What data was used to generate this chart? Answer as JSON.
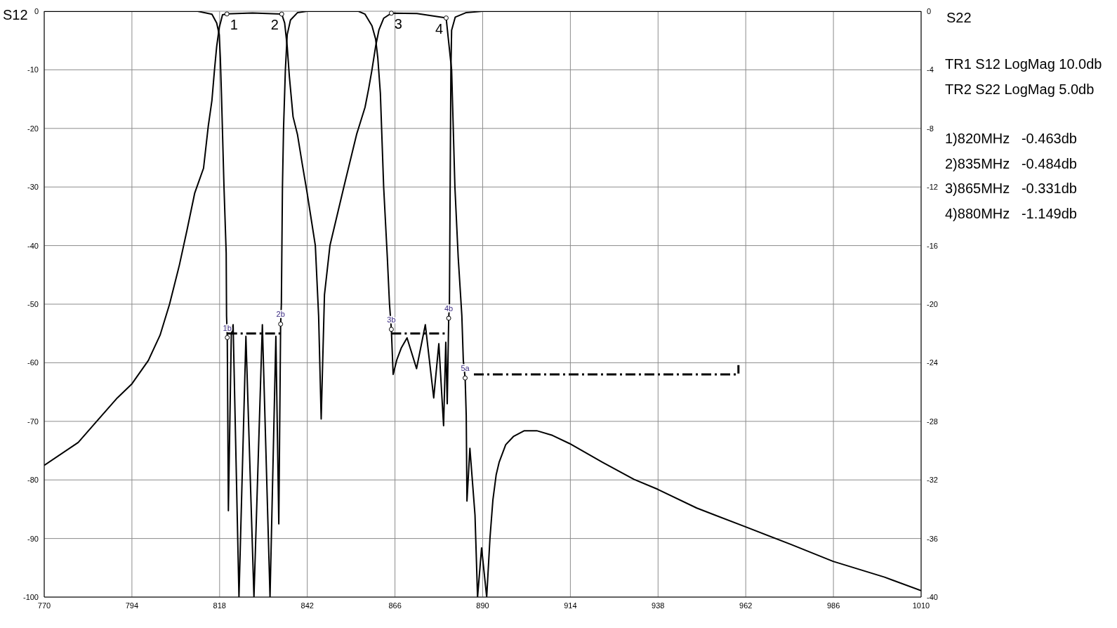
{
  "chart_data": {
    "type": "line",
    "ylabel": "S12",
    "y2label": "S22",
    "xlim": [
      770,
      1010
    ],
    "xticks": [
      770,
      794,
      818,
      842,
      866,
      890,
      914,
      938,
      962,
      986,
      1010
    ],
    "ylim": [
      -100,
      0
    ],
    "yticks": [
      -100,
      -90,
      -80,
      -70,
      -60,
      -50,
      -40,
      -30,
      -20,
      -10,
      0
    ],
    "y2lim": [
      -40,
      0
    ],
    "y2ticks": [
      -40,
      -36,
      -32,
      -28,
      -24,
      -20,
      -16,
      -12,
      -8,
      -4,
      0
    ],
    "grid": true,
    "line_style": "solid",
    "series": [
      {
        "color": "#000000",
        "x": [
          770,
          779.3,
          783.5,
          790,
          794,
          798.5,
          801.7,
          804.3,
          807,
          809.1,
          811.2,
          813.6,
          814.9,
          815.9,
          816.6,
          817.2,
          817.9,
          818.8,
          820,
          827,
          835,
          835.8,
          836.5,
          837.1,
          838.1,
          839.3,
          840.6,
          841.9,
          843.2,
          844.2,
          845.1,
          845.8,
          846.7,
          848.2,
          852,
          855.5,
          857.8,
          858.8,
          859.7,
          860.7,
          861.6,
          862.9,
          865,
          872,
          880,
          881.5,
          882.4,
          883.3,
          884.3,
          884.7,
          885.2,
          885.5,
          885.7,
          886.5,
          887.9,
          888.6,
          889.7,
          891.1,
          892,
          892.8,
          893.7,
          894.5,
          896.3,
          898.4,
          901.4,
          904.8,
          909.1,
          913.8,
          922.8,
          931.4,
          937.9,
          948.6,
          961.9,
          974.3,
          985.9,
          1000,
          1010
        ],
        "values": [
          -77.5,
          -73.6,
          -70.6,
          -66,
          -63.6,
          -59.6,
          -55.3,
          -50,
          -43.3,
          -37.3,
          -31,
          -26.8,
          -19.6,
          -15.2,
          -10,
          -6,
          -2.8,
          -0.6,
          -0.463,
          -0.3,
          -0.484,
          -2,
          -6,
          -11.2,
          -18,
          -21,
          -26,
          -30.8,
          -36,
          -40,
          -52,
          -69.6,
          -48.4,
          -40,
          -30,
          -21,
          -16.4,
          -13.2,
          -10,
          -6,
          -3.2,
          -1.2,
          -0.331,
          -0.4,
          -1.149,
          -10,
          -30,
          -42,
          -52,
          -59.6,
          -62.6,
          -69,
          -83.6,
          -74.6,
          -86,
          -100,
          -91.6,
          -100,
          -89.9,
          -83.4,
          -79.1,
          -77,
          -74,
          -72.6,
          -71.6,
          -71.6,
          -72.4,
          -73.8,
          -77,
          -79.9,
          -81.6,
          -84.8,
          -88,
          -91,
          -93.9,
          -96.6,
          -98.9
        ]
      },
      {
        "color": "#000000",
        "axis": "y2",
        "x": [
          770,
          812,
          815.9,
          817.2,
          817.9,
          818.2,
          818.5,
          819.2,
          819.8,
          819.9,
          820.1,
          820.4,
          821.2,
          821.7,
          823.3,
          825.2,
          827.4,
          829.7,
          831.8,
          833.4,
          834.2,
          834.7,
          834.9,
          835.2,
          835.5,
          836,
          836.5,
          837.4,
          839.3,
          841.9,
          856,
          857.8,
          859.7,
          860.7,
          861.3,
          862,
          862.9,
          863.9,
          864.5,
          865,
          865.5,
          866.5,
          867.7,
          869.3,
          871.9,
          874.3,
          876.6,
          878,
          879.3,
          879.9,
          880.3,
          880.7,
          880.9,
          881.1,
          881.3,
          881.5,
          882.5,
          885.4,
          889.9,
          1010
        ],
        "values": [
          0,
          0,
          -0.2,
          -0.8,
          -1.6,
          -3.2,
          -5.6,
          -12,
          -16.5,
          -20.8,
          -22.3,
          -34.1,
          -22.1,
          -21.4,
          -40,
          -22.2,
          -40,
          -21.4,
          -40,
          -22.2,
          -35,
          -21.4,
          -20,
          -12,
          -8,
          -4,
          -1.6,
          -0.6,
          -0.1,
          0,
          0,
          -0.2,
          -1,
          -1.9,
          -3.2,
          -5.6,
          -12,
          -16.8,
          -20,
          -21.7,
          -24.8,
          -23.8,
          -23,
          -22.3,
          -24.4,
          -21.4,
          -26.4,
          -22.7,
          -28.3,
          -22.6,
          -26.8,
          -21,
          -20,
          -12,
          -4,
          -1.3,
          -0.4,
          -0.1,
          0,
          0
        ]
      },
      {
        "color": "#000000",
        "axis": "y2",
        "line_style": "dashed",
        "x": [
          820.1,
          834.9,
          850,
          865,
          880.2
        ],
        "values": [
          -22,
          -22,
          null,
          -22,
          -22
        ]
      },
      {
        "color": "#000000",
        "line_style": "dashed",
        "x": [
          887.6,
          960,
          960
        ],
        "values": [
          -62,
          -62,
          -60.4
        ]
      }
    ],
    "annotations": [
      {
        "text": "1",
        "x": 820,
        "y": -0.463
      },
      {
        "text": "2",
        "x": 835,
        "y": -0.484
      },
      {
        "text": "3",
        "x": 865,
        "y": -0.331
      },
      {
        "text": "4",
        "x": 880,
        "y": -1.149
      },
      {
        "text": "1b",
        "x": 820.1,
        "y": -55.7
      },
      {
        "text": "2b",
        "x": 834.7,
        "y": -53.4
      },
      {
        "text": "3b",
        "x": 865,
        "y": -54.3
      },
      {
        "text": "4b",
        "x": 880.7,
        "y": -52.4
      },
      {
        "text": "5a",
        "x": 885.2,
        "y": -62.6
      },
      "TR1 S12 LogMag 10.0db",
      "TR2 S22 LogMag 5.0db",
      "1)820MHz   -0.463db",
      "2)835MHz   -0.484db",
      "3)865MHz   -0.331db",
      "4)880MHz   -1.149db"
    ]
  }
}
